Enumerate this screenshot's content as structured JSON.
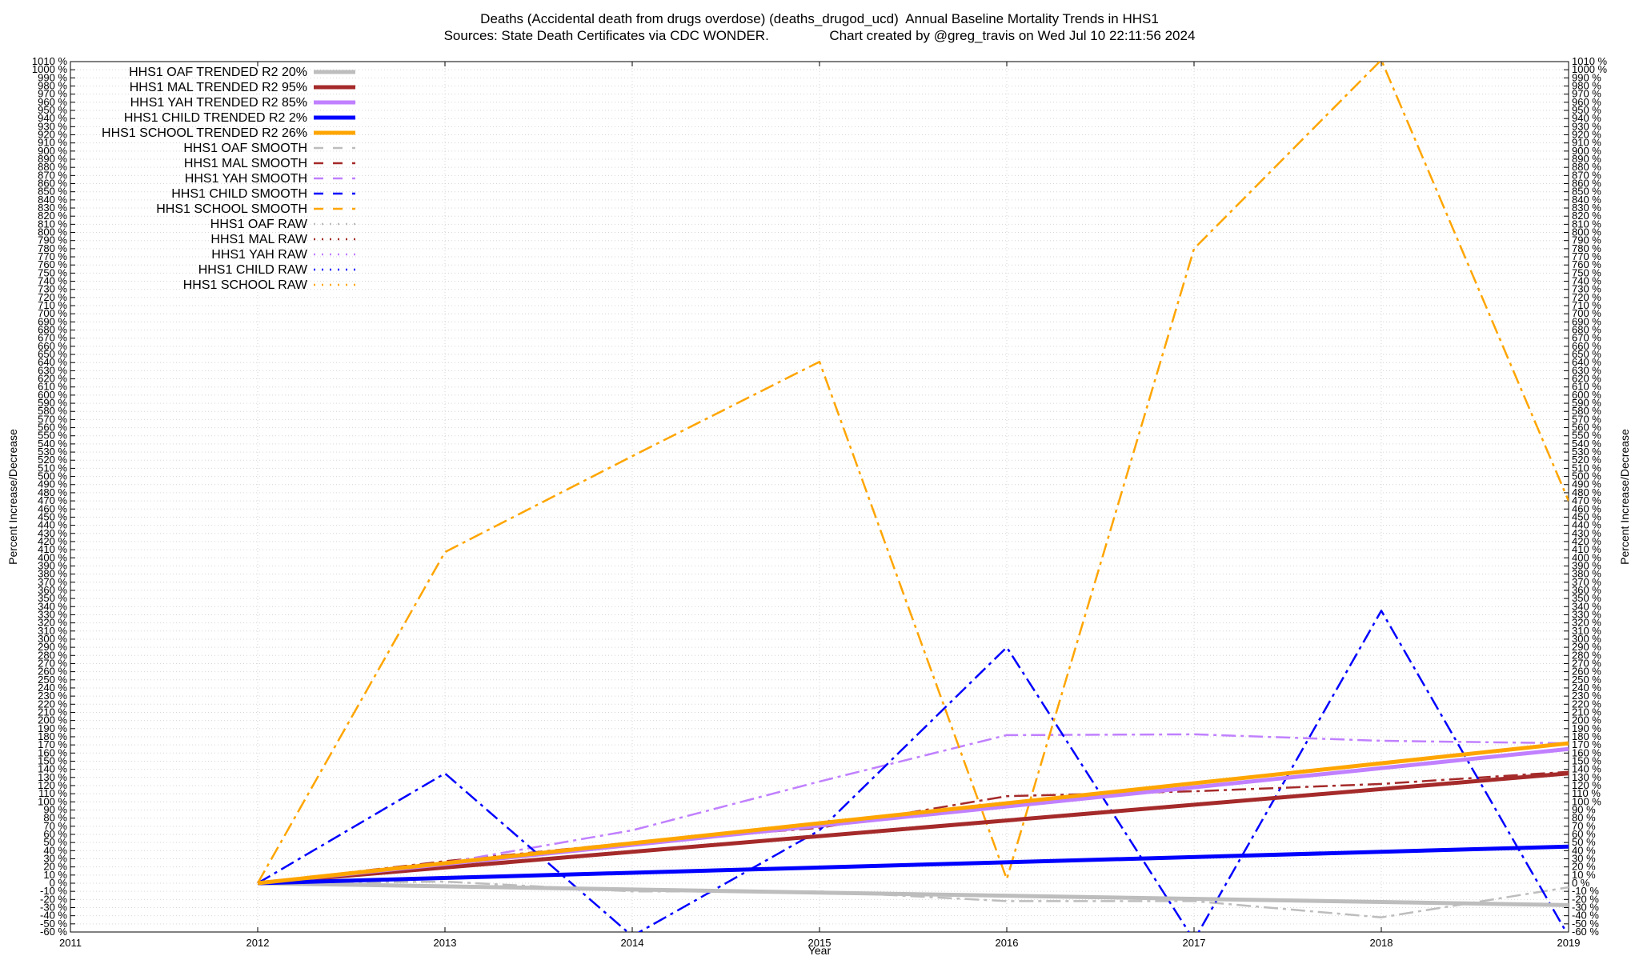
{
  "title_line1": "Deaths (Accidental death from drugs overdose) (deaths_drugod_ucd)  Annual Baseline Mortality Trends in HHS1",
  "title_line2": "Sources: State Death Certificates via CDC WONDER.                Chart created by @greg_travis on Wed Jul 10 22:11:56 2024",
  "chart_data": {
    "type": "line",
    "xlabel": "Year",
    "ylabel": "Percent Increase/Decrease",
    "xlim": [
      2011,
      2019
    ],
    "ylim": [
      -60,
      1010
    ],
    "ytick_step": 10,
    "ytick_suffix": " %",
    "xticks": [
      2011,
      2012,
      2013,
      2014,
      2015,
      2016,
      2017,
      2018,
      2019
    ],
    "grid": true,
    "legend_position": "top-left",
    "series": [
      {
        "name": "HHS1 OAF TRENDED R2  20%",
        "style": "solid",
        "color": "#bdbdbd",
        "width": 5,
        "x": [
          2012,
          2019
        ],
        "y": [
          0,
          -27
        ]
      },
      {
        "name": "HHS1 MAL TRENDED R2  95%",
        "style": "solid",
        "color": "#a52a2a",
        "width": 5,
        "x": [
          2012,
          2019
        ],
        "y": [
          0,
          135
        ]
      },
      {
        "name": "HHS1 YAH TRENDED R2  85%",
        "style": "solid",
        "color": "#c080ff",
        "width": 5,
        "x": [
          2012,
          2019
        ],
        "y": [
          0,
          165
        ]
      },
      {
        "name": "HHS1 CHILD TRENDED R2   2%",
        "style": "solid",
        "color": "#0000ff",
        "width": 5,
        "x": [
          2012,
          2019
        ],
        "y": [
          0,
          45
        ]
      },
      {
        "name": "HHS1 SCHOOL TRENDED R2  26%",
        "style": "solid",
        "color": "#ffa500",
        "width": 5,
        "x": [
          2012,
          2019
        ],
        "y": [
          0,
          172
        ]
      },
      {
        "name": "HHS1 OAF SMOOTH",
        "style": "dashdot",
        "color": "#bdbdbd",
        "width": 2.5,
        "x": [
          2012,
          2013,
          2014,
          2015,
          2016,
          2017,
          2018,
          2019
        ],
        "y": [
          0,
          2,
          -10,
          -10,
          -22,
          -22,
          -42,
          -5
        ]
      },
      {
        "name": "HHS1 MAL SMOOTH",
        "style": "dashdot",
        "color": "#a52a2a",
        "width": 2.5,
        "x": [
          2012,
          2013,
          2014,
          2015,
          2016,
          2017,
          2018,
          2019
        ],
        "y": [
          0,
          27,
          50,
          68,
          107,
          113,
          122,
          137
        ]
      },
      {
        "name": "HHS1 YAH SMOOTH",
        "style": "dashdot",
        "color": "#c080ff",
        "width": 2.5,
        "x": [
          2012,
          2013,
          2014,
          2015,
          2016,
          2017,
          2018,
          2019
        ],
        "y": [
          0,
          25,
          65,
          125,
          182,
          183,
          175,
          172
        ]
      },
      {
        "name": "HHS1 CHILD SMOOTH",
        "style": "dashdot",
        "color": "#0000ff",
        "width": 2.5,
        "x": [
          2012,
          2013,
          2014,
          2015,
          2016,
          2017,
          2018,
          2019
        ],
        "y": [
          0,
          135,
          -65,
          65,
          290,
          -70,
          335,
          -65
        ]
      },
      {
        "name": "HHS1 SCHOOL SMOOTH",
        "style": "dashdot",
        "color": "#ffa500",
        "width": 2.5,
        "x": [
          2012,
          2013,
          2014,
          2015,
          2016,
          2017,
          2018,
          2019
        ],
        "y": [
          0,
          407,
          525,
          641,
          5,
          780,
          1012,
          470
        ]
      },
      {
        "name": "HHS1 OAF RAW",
        "style": "dotted",
        "color": "#bdbdbd",
        "width": 2.5,
        "x": [],
        "y": []
      },
      {
        "name": "HHS1 MAL RAW",
        "style": "dotted",
        "color": "#a52a2a",
        "width": 2.5,
        "x": [],
        "y": []
      },
      {
        "name": "HHS1 YAH RAW",
        "style": "dotted",
        "color": "#c080ff",
        "width": 2.5,
        "x": [],
        "y": []
      },
      {
        "name": "HHS1 CHILD RAW",
        "style": "dotted",
        "color": "#0000ff",
        "width": 2.5,
        "x": [],
        "y": []
      },
      {
        "name": "HHS1 SCHOOL RAW",
        "style": "dotted",
        "color": "#ffa500",
        "width": 2.5,
        "x": [],
        "y": []
      }
    ]
  }
}
